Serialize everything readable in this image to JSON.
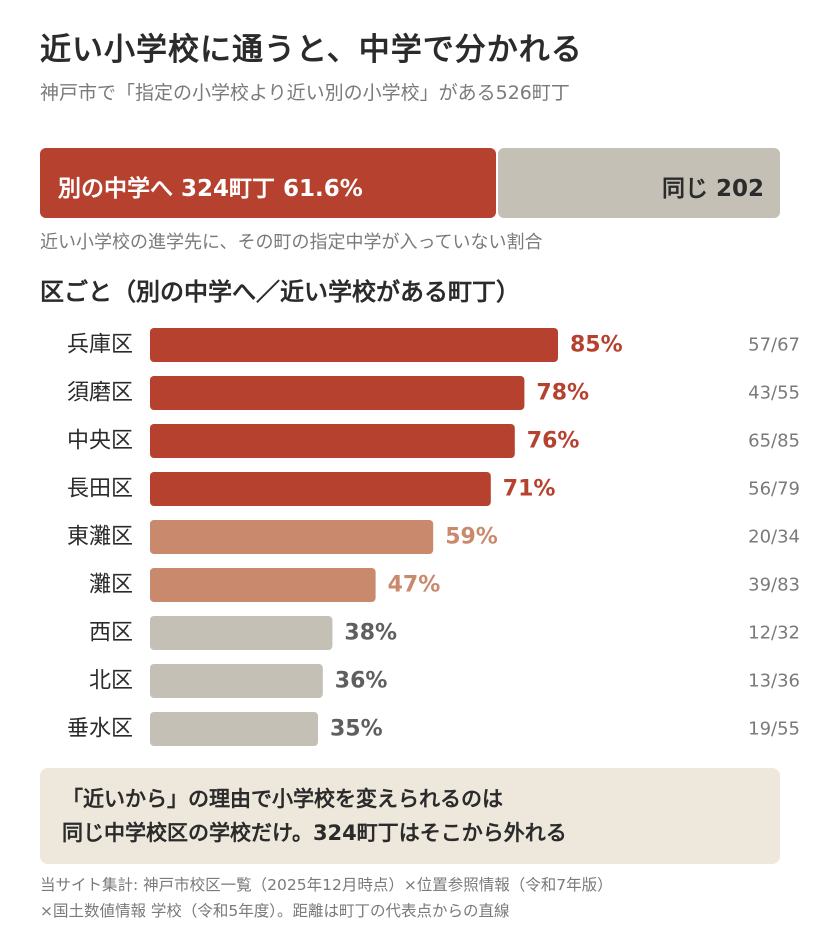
{
  "title": "近い小学校に通うと、中学で分かれる",
  "subtitle": "神戸市で「指定の小学校より近い別の小学校」がある526町丁",
  "summary": {
    "split_label": "別の中学へ 324町丁 61.6%",
    "split_value": 324,
    "same_label": "同じ 202",
    "same_value": 202,
    "split_color": "#b5412e",
    "same_color": "#c4c0b5"
  },
  "summary_note": "近い小学校の進学先に、その町の指定中学が入っていない割合",
  "section_title": "区ごと（別の中学へ／近い学校がある町丁）",
  "chart_data": {
    "type": "bar",
    "orientation": "horizontal",
    "categories": [
      "兵庫区",
      "須磨区",
      "中央区",
      "長田区",
      "東灘区",
      "灘区",
      "西区",
      "北区",
      "垂水区"
    ],
    "values": [
      85,
      78,
      76,
      71,
      59,
      47,
      38,
      36,
      35
    ],
    "value_labels": [
      "85%",
      "78%",
      "76%",
      "71%",
      "59%",
      "47%",
      "38%",
      "36%",
      "35%"
    ],
    "counts": [
      "57/67",
      "43/55",
      "65/85",
      "56/79",
      "20/34",
      "39/83",
      "12/32",
      "13/36",
      "19/55"
    ],
    "colors": [
      "#b5412e",
      "#b5412e",
      "#b5412e",
      "#b5412e",
      "#c9896c",
      "#c9896c",
      "#c4c0b5",
      "#c4c0b5",
      "#c4c0b5"
    ],
    "label_colors": [
      "#b5412e",
      "#b5412e",
      "#b5412e",
      "#b5412e",
      "#c9896c",
      "#c9896c",
      "#5f5f5f",
      "#5f5f5f",
      "#5f5f5f"
    ],
    "xlim": [
      0,
      100
    ],
    "grid": false
  },
  "callout": {
    "line1": "「近いから」の理由で小学校を変えられるのは",
    "line2": "同じ中学校区の学校だけ。324町丁はそこから外れる"
  },
  "source": {
    "line1": "当サイト集計: 神戸市校区一覧（2025年12月時点）×位置参照情報（令和7年版）",
    "line2": "×国土数値情報 学校（令和5年度）。距離は町丁の代表点からの直線"
  }
}
